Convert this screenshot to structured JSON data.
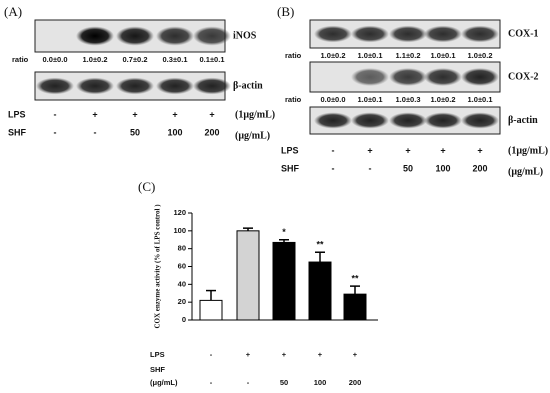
{
  "panel_a": {
    "label": "(A)",
    "ratio_label": "ratio",
    "blots": [
      {
        "name": "iNOS",
        "ratios": [
          "0.0±0.0",
          "1.0±0.2",
          "0.7±0.2",
          "0.3±0.1",
          "0.1±0.1"
        ]
      },
      {
        "name": "β-actin"
      }
    ],
    "rows": [
      {
        "label": "LPS",
        "values": [
          "-",
          "+",
          "+",
          "+",
          "+"
        ],
        "unit": "(1μg/mL)"
      },
      {
        "label": "SHF",
        "values": [
          "-",
          "-",
          "50",
          "100",
          "200"
        ],
        "unit": "(μg/mL)"
      }
    ]
  },
  "panel_b": {
    "label": "(B)",
    "ratio_label": "ratio",
    "blots": [
      {
        "name": "COX-1",
        "ratios": [
          "1.0±0.2",
          "1.0±0.1",
          "1.1±0.2",
          "1.0±0.1",
          "1.0±0.2"
        ]
      },
      {
        "name": "COX-2",
        "ratios": [
          "0.0±0.0",
          "1.0±0.1",
          "1.0±0.3",
          "1.0±0.2",
          "1.0±0.1"
        ]
      },
      {
        "name": "β-actin"
      }
    ],
    "rows": [
      {
        "label": "LPS",
        "values": [
          "-",
          "+",
          "+",
          "+",
          "+"
        ],
        "unit": "(1μg/mL)"
      },
      {
        "label": "SHF",
        "values": [
          "-",
          "-",
          "50",
          "100",
          "200"
        ],
        "unit": "(μg/mL)"
      }
    ]
  },
  "chart_data": {
    "type": "bar",
    "label": "(C)",
    "y_label": "COX enzyme activity (% of LPS control )",
    "values": [
      22,
      100,
      87,
      65,
      29
    ],
    "errors": [
      11,
      3,
      3,
      11,
      9
    ],
    "colors": [
      "#ffffff",
      "#d3d3d3",
      "#000000",
      "#000000",
      "#000000"
    ],
    "significance": [
      null,
      null,
      "*",
      "**",
      "**"
    ],
    "ylim": [
      0,
      120
    ],
    "yticks": [
      0,
      20,
      40,
      60,
      80,
      100,
      120
    ],
    "rows": [
      {
        "label": "LPS",
        "values": [
          "-",
          "+",
          "+",
          "+",
          "+"
        ]
      },
      {
        "label": "SHF"
      },
      {
        "label": "(μg/mL)",
        "values": [
          "-",
          "-",
          "50",
          "100",
          "200"
        ]
      }
    ]
  }
}
